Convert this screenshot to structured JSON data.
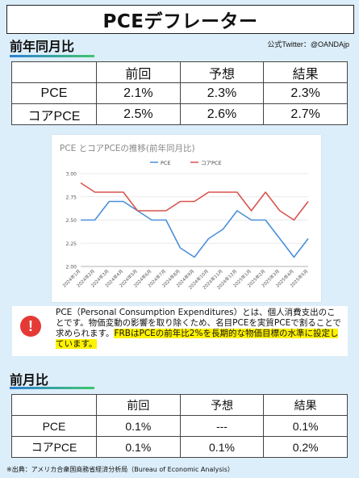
{
  "title": "PCEデフレーター",
  "credit": "公式Twitter：@OANDAjp",
  "yoy": {
    "heading": "前年同月比",
    "columns": [
      "",
      "前回",
      "予想",
      "結果"
    ],
    "rows": [
      [
        "PCE",
        "2.1%",
        "2.3%",
        "2.3%"
      ],
      [
        "コアPCE",
        "2.5%",
        "2.6%",
        "2.7%"
      ]
    ]
  },
  "mom": {
    "heading": "前月比",
    "columns": [
      "",
      "前回",
      "予想",
      "結果"
    ],
    "rows": [
      [
        "PCE",
        "0.1%",
        "---",
        "0.1%"
      ],
      [
        "コアPCE",
        "0.1%",
        "0.1%",
        "0.2%"
      ]
    ]
  },
  "note": {
    "text": "PCE（Personal Consumption Expenditures）とは、個人消費支出のことです。物価変動の影響を取り除くため、名目PCEを実質PCEで割ることで求められます。",
    "highlight": "FRBはPCEの前年比2%を長期的な物価目標の水準に設定しています。",
    "icon": "alert-icon"
  },
  "source": "※出典：アメリカ合衆国商務省経済分析局（Bureau of Economic Analysis）",
  "chart_data": {
    "type": "line",
    "title": "PCE とコアPCEの推移(前年同月比)",
    "categories": [
      "2024年1月",
      "2024年2月",
      "2024年3月",
      "2024年4月",
      "2024年5月",
      "2024年6月",
      "2024年7月",
      "2024年8月",
      "2024年9月",
      "2024年10月",
      "2024年11月",
      "2024年12月",
      "2025年1月",
      "2025年2月",
      "2025年3月",
      "2025年4月",
      "2025年5月"
    ],
    "series": [
      {
        "name": "PCE",
        "color": "#4a90d9",
        "values": [
          2.5,
          2.5,
          2.7,
          2.7,
          2.6,
          2.5,
          2.5,
          2.2,
          2.1,
          2.3,
          2.4,
          2.6,
          2.5,
          2.5,
          2.3,
          2.1,
          2.3
        ]
      },
      {
        "name": "コアPCE",
        "color": "#d9534f",
        "values": [
          2.9,
          2.8,
          2.8,
          2.8,
          2.6,
          2.6,
          2.6,
          2.7,
          2.7,
          2.8,
          2.8,
          2.8,
          2.6,
          2.8,
          2.6,
          2.5,
          2.7
        ]
      }
    ],
    "yticks": [
      "3.00",
      "2.75",
      "2.50",
      "2.25",
      "2.00"
    ],
    "ylim": [
      2.0,
      3.0
    ],
    "legend": "top-center",
    "grid": true
  }
}
